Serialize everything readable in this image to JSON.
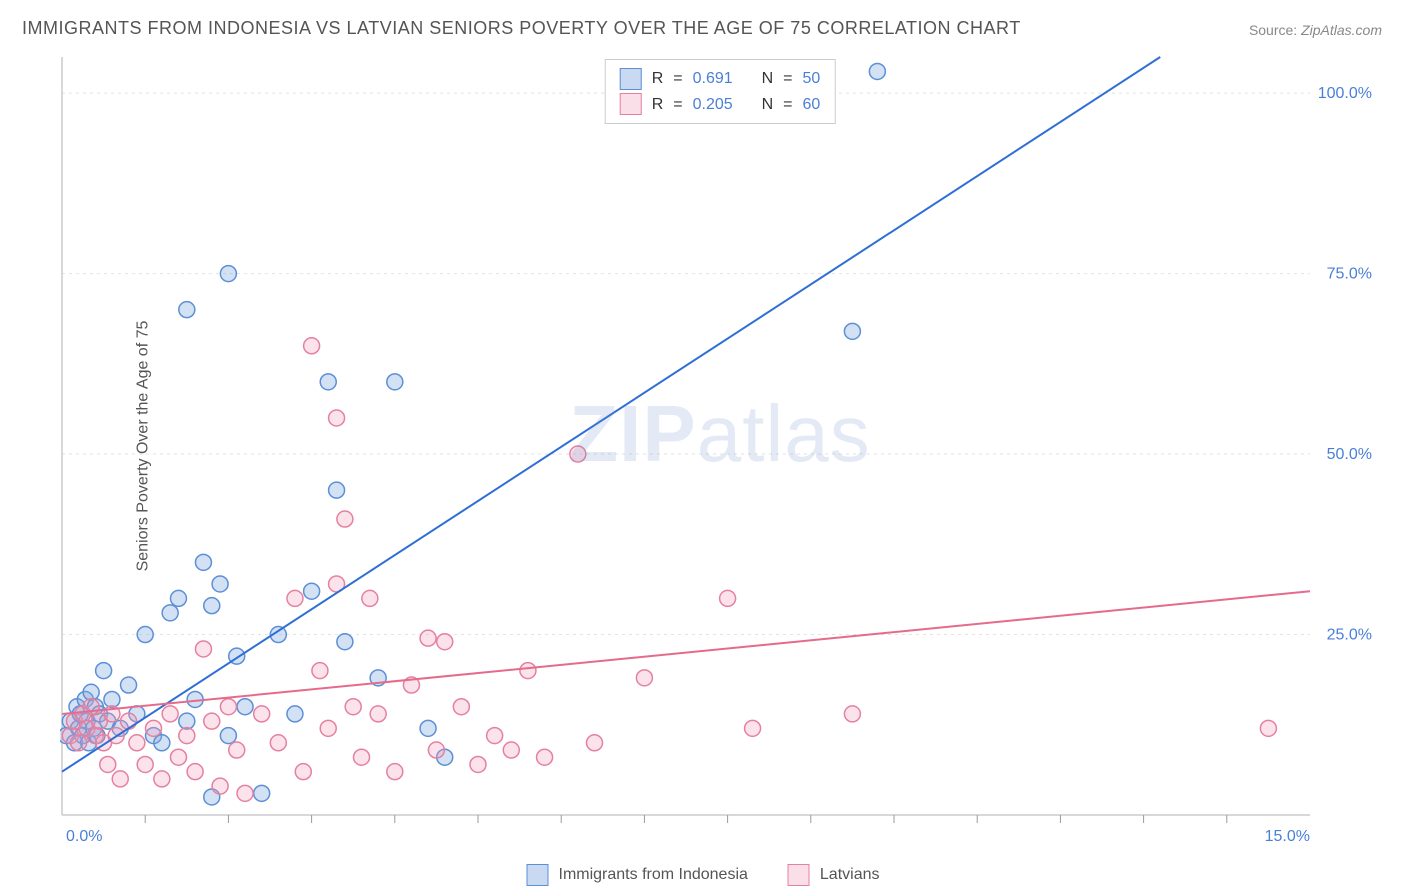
{
  "title": "IMMIGRANTS FROM INDONESIA VS LATVIAN SENIORS POVERTY OVER THE AGE OF 75 CORRELATION CHART",
  "source_label": "Source:",
  "source_value": "ZipAtlas.com",
  "ylabel": "Seniors Poverty Over the Age of 75",
  "watermark_bold": "ZIP",
  "watermark_rest": "atlas",
  "chart": {
    "type": "scatter",
    "background_color": "#ffffff",
    "grid_color": "#e2e2e2",
    "axis_color": "#cccccc",
    "tick_color": "#999999",
    "text_color_axis": "#4a7fd6",
    "font_family": "Arial",
    "title_fontsize": 18,
    "label_fontsize": 16,
    "tick_fontsize": 16,
    "xlim": [
      0,
      15
    ],
    "ylim": [
      0,
      105
    ],
    "x_tick_label_left": "0.0%",
    "x_tick_label_right": "15.0%",
    "y_ticks": [
      25,
      50,
      75,
      100
    ],
    "y_tick_labels": [
      "25.0%",
      "50.0%",
      "75.0%",
      "100.0%"
    ],
    "x_minor_ticks": [
      1,
      2,
      3,
      4,
      5,
      6,
      7,
      8,
      9,
      10,
      11,
      12,
      13,
      14
    ],
    "marker_radius": 8,
    "marker_stroke_width": 1.5,
    "line_width": 2,
    "series": [
      {
        "name": "Immigrants from Indonesia",
        "fill": "rgba(130,170,225,0.35)",
        "stroke": "#5c8fd6",
        "line_color": "#2e6fd6",
        "R": "0.691",
        "N": "50",
        "trend": {
          "x1": 0,
          "y1": 6,
          "x2": 13.2,
          "y2": 105
        },
        "points": [
          [
            0.05,
            11
          ],
          [
            0.1,
            13
          ],
          [
            0.15,
            10
          ],
          [
            0.18,
            15
          ],
          [
            0.2,
            12
          ],
          [
            0.22,
            14
          ],
          [
            0.25,
            11
          ],
          [
            0.28,
            16
          ],
          [
            0.3,
            13
          ],
          [
            0.32,
            10
          ],
          [
            0.35,
            17
          ],
          [
            0.38,
            12
          ],
          [
            0.4,
            15
          ],
          [
            0.42,
            11
          ],
          [
            0.45,
            14
          ],
          [
            0.5,
            20
          ],
          [
            0.55,
            13
          ],
          [
            0.6,
            16
          ],
          [
            0.7,
            12
          ],
          [
            0.8,
            18
          ],
          [
            0.9,
            14
          ],
          [
            1.0,
            25
          ],
          [
            1.1,
            11
          ],
          [
            1.2,
            10
          ],
          [
            1.3,
            28
          ],
          [
            1.4,
            30
          ],
          [
            1.5,
            13
          ],
          [
            1.5,
            70
          ],
          [
            1.6,
            16
          ],
          [
            1.7,
            35
          ],
          [
            1.8,
            29
          ],
          [
            1.8,
            2.5
          ],
          [
            1.9,
            32
          ],
          [
            2.0,
            11
          ],
          [
            2.0,
            75
          ],
          [
            2.1,
            22
          ],
          [
            2.2,
            15
          ],
          [
            2.4,
            3
          ],
          [
            2.6,
            25
          ],
          [
            2.8,
            14
          ],
          [
            3.0,
            31
          ],
          [
            3.2,
            60
          ],
          [
            3.3,
            45
          ],
          [
            3.4,
            24
          ],
          [
            3.8,
            19
          ],
          [
            4.0,
            60
          ],
          [
            4.4,
            12
          ],
          [
            4.6,
            8
          ],
          [
            9.5,
            67
          ],
          [
            9.8,
            103
          ]
        ]
      },
      {
        "name": "Latvians",
        "fill": "rgba(245,160,190,0.3)",
        "stroke": "#e5819f",
        "line_color": "#e46b8c",
        "R": "0.205",
        "N": "60",
        "trend": {
          "x1": 0,
          "y1": 14,
          "x2": 15,
          "y2": 31
        },
        "points": [
          [
            0.1,
            11
          ],
          [
            0.15,
            13
          ],
          [
            0.2,
            10
          ],
          [
            0.25,
            14
          ],
          [
            0.3,
            12
          ],
          [
            0.35,
            15
          ],
          [
            0.4,
            11
          ],
          [
            0.45,
            13
          ],
          [
            0.5,
            10
          ],
          [
            0.55,
            7
          ],
          [
            0.6,
            14
          ],
          [
            0.65,
            11
          ],
          [
            0.7,
            5
          ],
          [
            0.8,
            13
          ],
          [
            0.9,
            10
          ],
          [
            1.0,
            7
          ],
          [
            1.1,
            12
          ],
          [
            1.2,
            5
          ],
          [
            1.3,
            14
          ],
          [
            1.4,
            8
          ],
          [
            1.5,
            11
          ],
          [
            1.6,
            6
          ],
          [
            1.7,
            23
          ],
          [
            1.8,
            13
          ],
          [
            1.9,
            4
          ],
          [
            2.0,
            15
          ],
          [
            2.1,
            9
          ],
          [
            2.2,
            3
          ],
          [
            2.4,
            14
          ],
          [
            2.6,
            10
          ],
          [
            2.8,
            30
          ],
          [
            2.9,
            6
          ],
          [
            3.0,
            65
          ],
          [
            3.1,
            20
          ],
          [
            3.2,
            12
          ],
          [
            3.3,
            32
          ],
          [
            3.3,
            55
          ],
          [
            3.4,
            41
          ],
          [
            3.5,
            15
          ],
          [
            3.6,
            8
          ],
          [
            3.7,
            30
          ],
          [
            3.8,
            14
          ],
          [
            4.0,
            6
          ],
          [
            4.2,
            18
          ],
          [
            4.4,
            24.5
          ],
          [
            4.5,
            9
          ],
          [
            4.6,
            24
          ],
          [
            4.8,
            15
          ],
          [
            5.0,
            7
          ],
          [
            5.2,
            11
          ],
          [
            5.4,
            9
          ],
          [
            5.6,
            20
          ],
          [
            5.8,
            8
          ],
          [
            6.2,
            50
          ],
          [
            6.4,
            10
          ],
          [
            7.0,
            19
          ],
          [
            8.0,
            30
          ],
          [
            8.3,
            12
          ],
          [
            9.5,
            14
          ],
          [
            14.5,
            12
          ]
        ]
      }
    ],
    "stats_box": {
      "R_label": "R",
      "N_label": "N",
      "equals": "="
    },
    "bottom_legend": {
      "series1": "Immigrants from Indonesia",
      "series2": "Latvians"
    }
  }
}
